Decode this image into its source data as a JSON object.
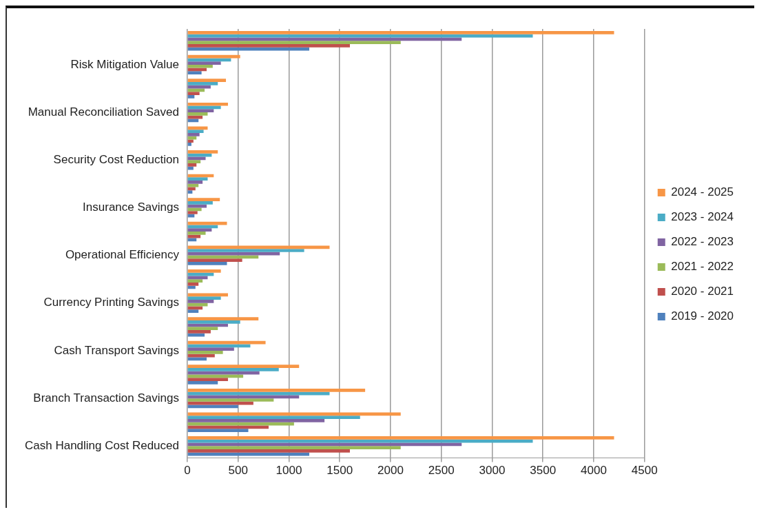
{
  "chart_data": {
    "type": "bar",
    "orientation": "horizontal",
    "categories": [
      null,
      "Risk Mitigation Value",
      null,
      "Manual Reconciliation Saved",
      null,
      "Security Cost Reduction",
      null,
      "Insurance Savings",
      null,
      "Operational Efficiency",
      null,
      "Currency Printing Savings",
      null,
      "Cash Transport Savings",
      null,
      "Branch Transaction Savings",
      null,
      "Cash Handling Cost Reduced"
    ],
    "series": [
      {
        "name": "2024 - 2025",
        "color": "#f79646",
        "values": [
          4200,
          520,
          380,
          400,
          200,
          300,
          260,
          320,
          390,
          1400,
          330,
          400,
          700,
          770,
          1100,
          1750,
          2100,
          4200
        ]
      },
      {
        "name": "2023 - 2024",
        "color": "#4bacc6",
        "values": [
          3400,
          430,
          300,
          330,
          160,
          240,
          200,
          250,
          300,
          1150,
          260,
          330,
          520,
          620,
          900,
          1400,
          1700,
          3400
        ]
      },
      {
        "name": "2022 - 2023",
        "color": "#8064a2",
        "values": [
          2700,
          330,
          230,
          260,
          120,
          180,
          150,
          190,
          240,
          910,
          200,
          260,
          400,
          460,
          710,
          1100,
          1350,
          2700
        ]
      },
      {
        "name": "2021 - 2022",
        "color": "#9bbb59",
        "values": [
          2100,
          250,
          170,
          200,
          90,
          130,
          110,
          140,
          180,
          700,
          150,
          200,
          300,
          350,
          550,
          850,
          1050,
          2100
        ]
      },
      {
        "name": "2020 - 2021",
        "color": "#c0504d",
        "values": [
          1600,
          190,
          120,
          150,
          60,
          90,
          80,
          100,
          130,
          540,
          110,
          150,
          230,
          270,
          400,
          650,
          800,
          1600
        ]
      },
      {
        "name": "2019 - 2020",
        "color": "#4f81bd",
        "values": [
          1200,
          140,
          70,
          110,
          40,
          60,
          50,
          70,
          90,
          390,
          80,
          110,
          170,
          190,
          300,
          500,
          600,
          1200
        ]
      }
    ],
    "xlim": [
      0,
      4500
    ],
    "xticks": [
      0,
      500,
      1000,
      1500,
      2000,
      2500,
      3000,
      3500,
      4000,
      4500
    ],
    "grid": "x",
    "legend": "right"
  }
}
